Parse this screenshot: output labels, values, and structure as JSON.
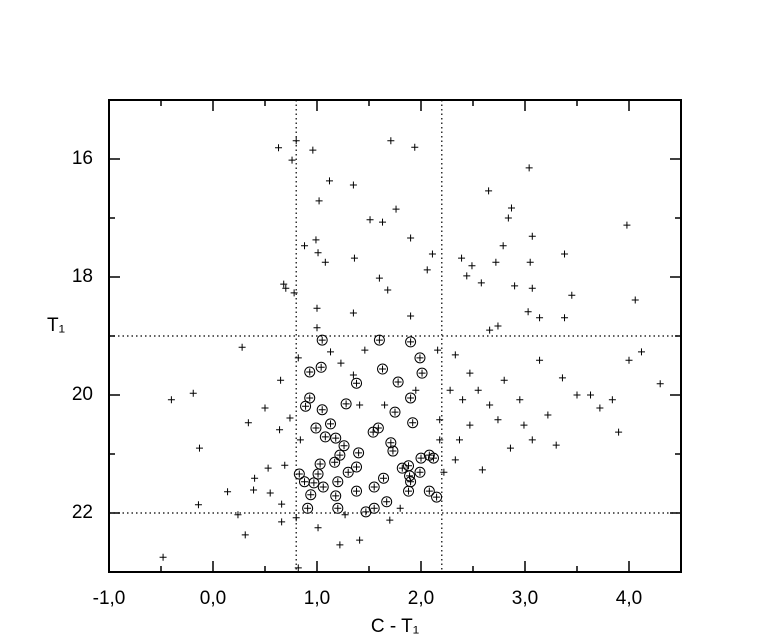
{
  "chart_data": {
    "type": "scatter",
    "xlabel": "C - T₁",
    "ylabel": "T₁",
    "xlim": [
      -1,
      4.5
    ],
    "ylim": [
      23,
      15
    ],
    "xticks": [
      {
        "value": -1,
        "label": "-1,0"
      },
      {
        "value": 0,
        "label": "0,0"
      },
      {
        "value": 1,
        "label": "1,0"
      },
      {
        "value": 2,
        "label": "2,0"
      },
      {
        "value": 3,
        "label": "3,0"
      },
      {
        "value": 4,
        "label": "4,0"
      }
    ],
    "xminorticks": [
      -0.5,
      0.5,
      1.5,
      2.5,
      3.5
    ],
    "yticks": [
      16,
      18,
      20,
      22
    ],
    "yminorticks": [
      17,
      19,
      21
    ],
    "reference_lines": {
      "x": [
        0.8,
        2.2
      ],
      "y": [
        19,
        22
      ]
    },
    "color": "#000000",
    "series": [
      {
        "marker": "plus",
        "x": [
          0.63,
          0.8,
          0.96,
          1.71,
          1.94,
          3.04,
          0.76,
          1.12,
          1.35,
          1.02,
          2.65,
          2.87,
          2.84,
          1.76,
          1.51,
          1.63,
          3.98,
          3.07,
          0.99,
          1.9,
          0.88,
          2.79,
          1.01,
          1.36,
          2.11,
          1.08,
          2.72,
          3.05,
          3.38,
          2.39,
          2.49,
          2.06,
          1.6,
          0.68,
          0.78,
          0.7,
          2.44,
          2.9,
          3.07,
          1.68,
          2.58,
          3.45,
          4.06,
          1.0,
          3.03,
          3.14,
          2.74,
          3.38,
          1.35,
          1.0,
          1.9,
          2.66,
          0.28,
          0.65,
          -0.4,
          -0.19,
          -0.13,
          0.5,
          0.34,
          0.74,
          0.64,
          1.23,
          1.35,
          0.82,
          2.33,
          2.47,
          2.55,
          2.4,
          2.66,
          2.8,
          2.95,
          3.14,
          3.36,
          3.5,
          3.72,
          3.84,
          4.0,
          4.12,
          4.3,
          3.9,
          3.3,
          3.07,
          2.86,
          2.59,
          2.33,
          2.22,
          2.74,
          2.37,
          2.47,
          2.99,
          3.22,
          3.63,
          2.18,
          2.28,
          2.16,
          1.65,
          1.41,
          0.84,
          0.69,
          0.4,
          0.39,
          0.55,
          0.14,
          -0.14,
          0.24,
          0.31,
          0.66,
          0.8,
          1.01,
          1.22,
          1.41,
          -0.48,
          0.82,
          1.8,
          1.7,
          1.27,
          0.66,
          0.53,
          2.18,
          1.95,
          1.46,
          1.13
        ],
        "values": [
          15.81,
          15.69,
          15.85,
          15.69,
          15.8,
          16.15,
          16.02,
          16.37,
          16.44,
          16.71,
          16.54,
          16.83,
          17.0,
          16.85,
          17.03,
          17.07,
          17.12,
          17.31,
          17.37,
          17.34,
          17.47,
          17.47,
          17.59,
          17.68,
          17.61,
          17.75,
          17.75,
          17.75,
          17.61,
          17.68,
          17.81,
          17.88,
          18.02,
          18.12,
          18.27,
          18.19,
          17.98,
          18.15,
          18.19,
          18.22,
          18.1,
          18.31,
          18.39,
          18.53,
          18.59,
          18.69,
          18.83,
          18.69,
          18.61,
          18.86,
          18.66,
          18.9,
          19.19,
          19.75,
          20.08,
          19.97,
          20.9,
          20.22,
          20.47,
          20.39,
          20.59,
          19.46,
          19.66,
          19.37,
          19.32,
          19.63,
          19.92,
          20.08,
          20.17,
          19.75,
          20.08,
          19.41,
          19.71,
          20.0,
          20.22,
          20.08,
          19.41,
          19.27,
          19.81,
          20.63,
          20.85,
          20.76,
          20.9,
          21.27,
          21.1,
          21.31,
          20.42,
          20.76,
          20.51,
          20.51,
          20.34,
          20.0,
          20.42,
          19.92,
          19.24,
          20.17,
          20.17,
          20.76,
          21.19,
          21.41,
          21.61,
          21.66,
          21.64,
          21.86,
          22.03,
          22.37,
          22.15,
          22.08,
          22.25,
          22.54,
          22.46,
          22.75,
          22.93,
          21.92,
          22.12,
          22.03,
          21.85,
          21.24,
          20.76,
          19.92,
          19.24,
          19.27
        ]
      },
      {
        "marker": "circle-plus",
        "x": [
          1.05,
          1.6,
          1.99,
          1.9,
          1.63,
          1.04,
          0.93,
          1.78,
          1.38,
          2.01,
          0.93,
          1.9,
          0.89,
          1.05,
          1.28,
          1.75,
          1.92,
          1.13,
          0.99,
          1.59,
          1.54,
          1.08,
          1.18,
          1.26,
          1.71,
          1.4,
          1.73,
          1.22,
          2.08,
          2.12,
          2.0,
          1.03,
          1.38,
          1.17,
          1.82,
          1.88,
          1.99,
          0.83,
          1.01,
          1.3,
          1.64,
          1.89,
          0.88,
          0.97,
          1.2,
          1.06,
          1.55,
          1.9,
          1.88,
          1.38,
          2.08,
          0.94,
          1.18,
          2.15,
          1.67,
          0.91,
          1.2,
          1.47,
          1.55
        ],
        "values": [
          19.07,
          19.07,
          19.37,
          19.1,
          19.56,
          19.53,
          19.61,
          19.78,
          19.8,
          19.63,
          20.05,
          20.05,
          20.19,
          20.25,
          20.15,
          20.29,
          20.47,
          20.49,
          20.56,
          20.56,
          20.63,
          20.71,
          20.73,
          20.86,
          20.81,
          20.98,
          20.95,
          21.02,
          21.02,
          21.07,
          21.07,
          21.17,
          21.22,
          21.14,
          21.24,
          21.2,
          21.31,
          21.34,
          21.34,
          21.31,
          21.41,
          21.37,
          21.47,
          21.49,
          21.47,
          21.56,
          21.56,
          21.47,
          21.63,
          21.63,
          21.63,
          21.69,
          21.71,
          21.73,
          21.81,
          21.92,
          21.92,
          21.98,
          21.92
        ]
      }
    ]
  }
}
